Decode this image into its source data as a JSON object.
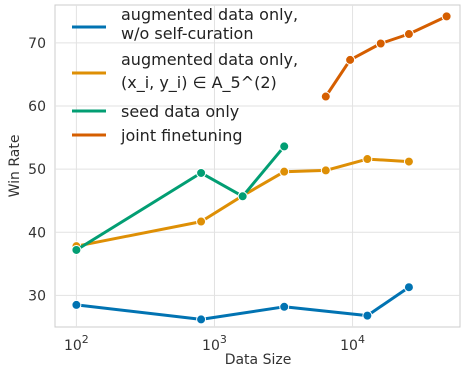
{
  "chart_data": {
    "type": "line",
    "title": "",
    "xlabel": "Data Size",
    "ylabel": "Win Rate",
    "xscale": "log",
    "xlim": [
      70,
      60000
    ],
    "ylim": [
      25,
      76
    ],
    "grid": true,
    "legend_position": "top-left",
    "xticks": [
      {
        "value": 100,
        "base": "10",
        "exp": "2"
      },
      {
        "value": 1000,
        "base": "10",
        "exp": "3"
      },
      {
        "value": 10000,
        "base": "10",
        "exp": "4"
      }
    ],
    "yticks": [
      30,
      40,
      50,
      60,
      70
    ],
    "series": [
      {
        "key": "aug-wo-curation",
        "name_line1": "augmented data only,",
        "name_line2": "w/o self-curation",
        "color": "#0173b2",
        "x": [
          100,
          800,
          3200,
          12800,
          25600
        ],
        "y": [
          28.5,
          26.2,
          28.2,
          26.8,
          31.3
        ]
      },
      {
        "key": "aug-a5",
        "name_line1": "augmented data only,",
        "name_line2": "(x_i, y_i) ∈ A_5^(2)",
        "color": "#de8f05",
        "x": [
          100,
          800,
          1600,
          3200,
          6400,
          12800,
          25600
        ],
        "y": [
          37.8,
          41.7,
          45.8,
          49.6,
          49.8,
          51.6,
          51.2
        ]
      },
      {
        "key": "seed-only",
        "name_line1": "seed data only",
        "color": "#029e73",
        "x": [
          100,
          800,
          1600,
          3200
        ],
        "y": [
          37.2,
          49.4,
          45.7,
          53.6
        ]
      },
      {
        "key": "joint",
        "name_line1": "joint finetuning",
        "color": "#d55e00",
        "x": [
          6400,
          9600,
          16000,
          25600,
          48000
        ],
        "y": [
          61.5,
          67.3,
          69.9,
          71.4,
          74.2
        ]
      }
    ]
  }
}
